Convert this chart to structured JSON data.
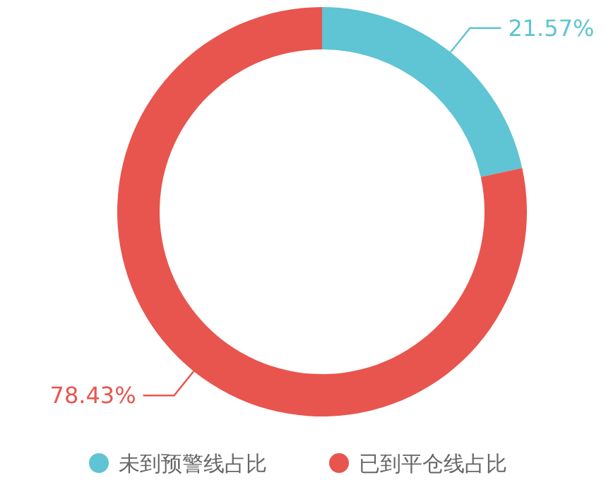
{
  "chart_data": {
    "type": "donut",
    "categories": [
      "未到预警线占比",
      "已到平仓线占比"
    ],
    "values": [
      21.57,
      78.43
    ],
    "colors": [
      "#5fc4d3",
      "#e8554e"
    ],
    "value_labels": [
      "21.57%",
      "78.43%"
    ],
    "legend": "bottom"
  }
}
